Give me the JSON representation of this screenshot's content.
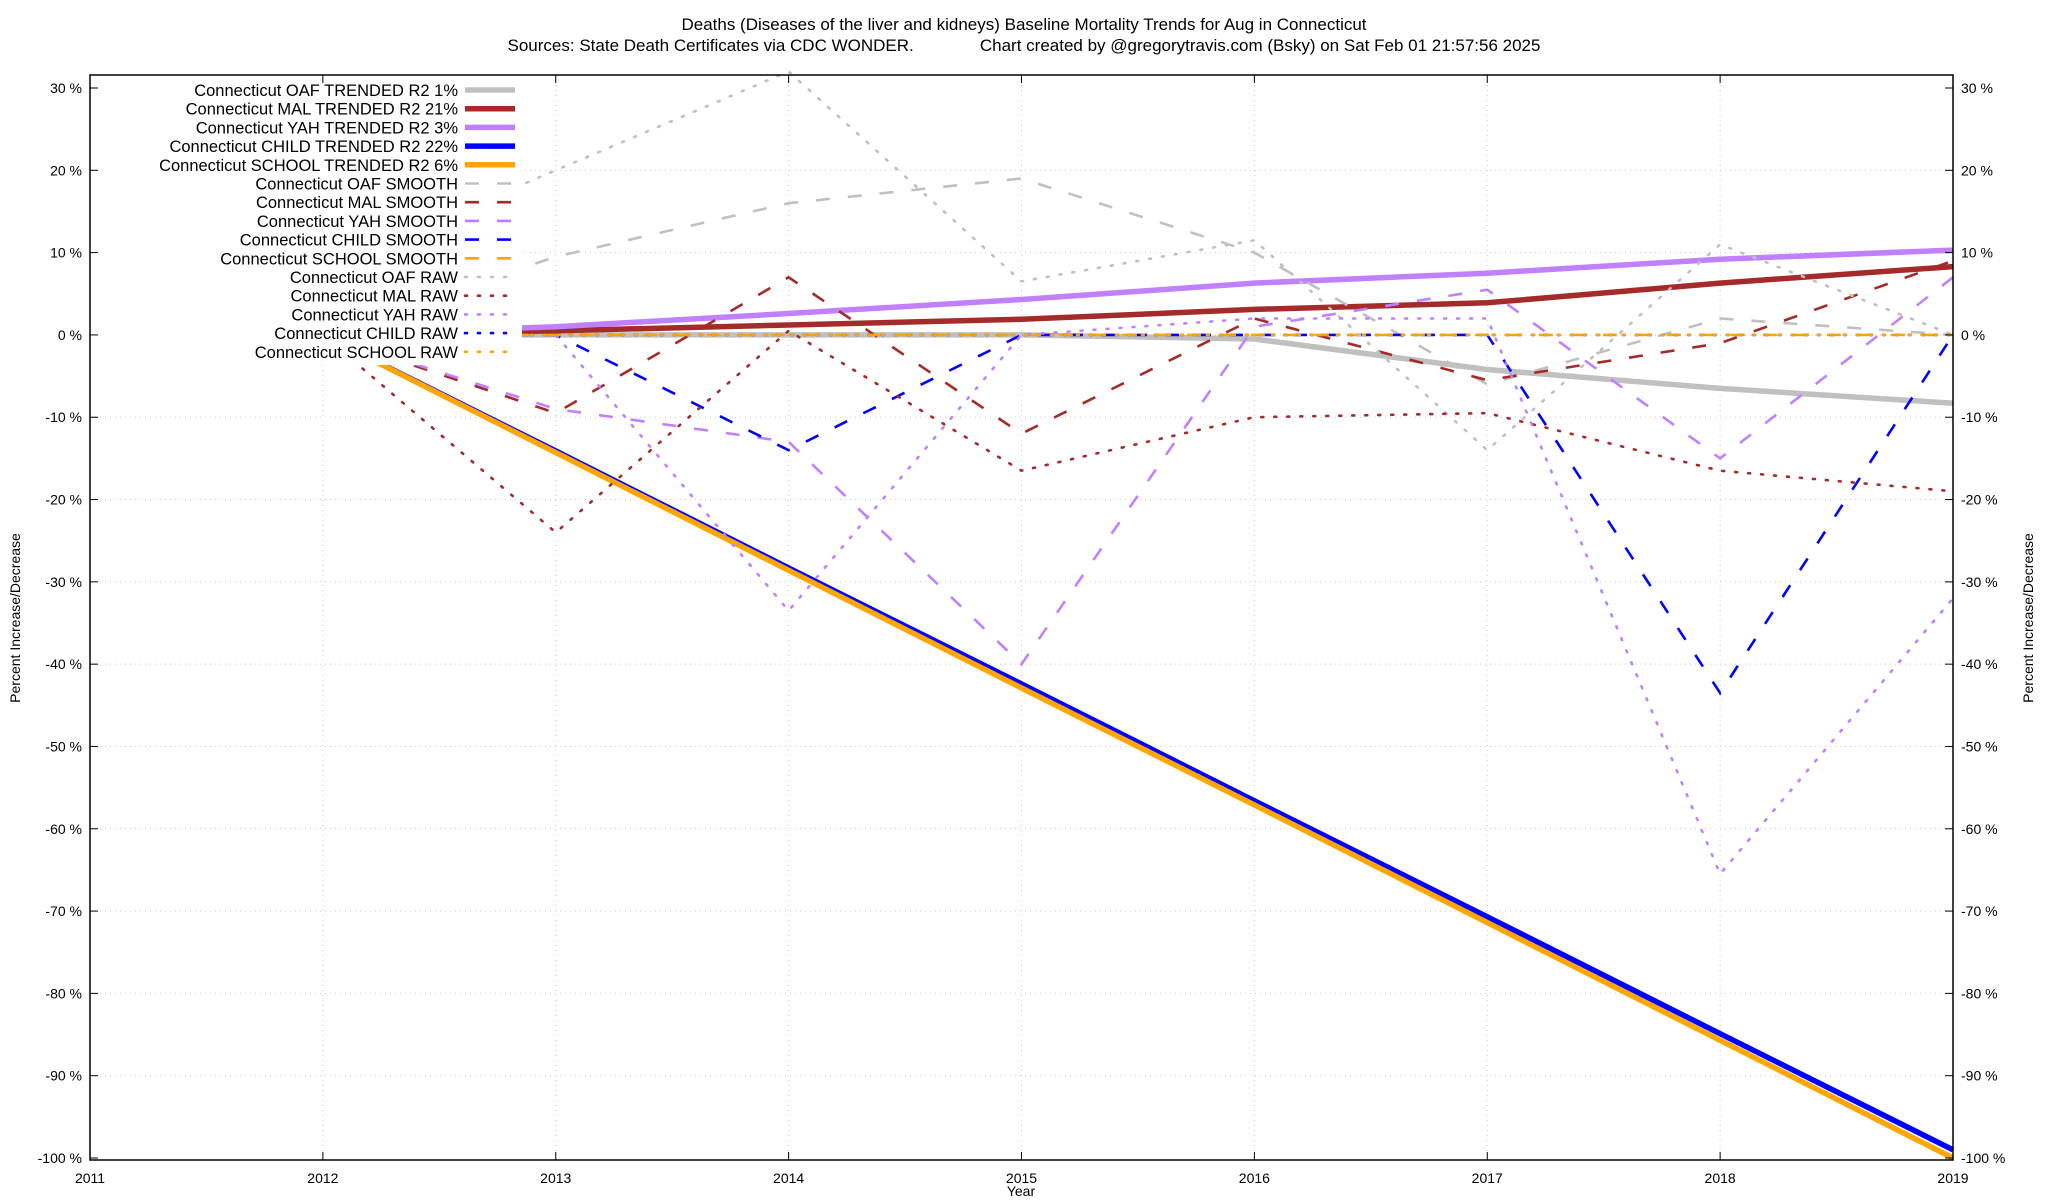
{
  "chart_data": {
    "type": "line",
    "title": "Deaths (Diseases of the liver and kidneys)  Baseline Mortality Trends for Aug in Connecticut",
    "subtitle": "Sources: State Death Certificates via CDC WONDER.              Chart created by @gregorytravis.com (Bsky) on Sat Feb 01 21:57:56 2025",
    "xlabel": "Year",
    "ylabel": "Percent Increase/Decrease",
    "y2label": "Percent Increase/Decrease",
    "xlim": [
      2011,
      2019
    ],
    "ylim": [
      -100,
      30
    ],
    "xticks": [
      "2011",
      "2012",
      "2013",
      "2014",
      "2015",
      "2016",
      "2017",
      "2018",
      "2019"
    ],
    "yticks": [
      "30 %",
      "20 %",
      "10 %",
      "0 %",
      "-10 %",
      "-20 %",
      "-30 %",
      "-40 %",
      "-50 %",
      "-60 %",
      "-70 %",
      "-80 %",
      "-90 %",
      "-100 %"
    ],
    "grid": true,
    "legend_position": "top-left",
    "x": [
      2012,
      2013,
      2014,
      2015,
      2016,
      2017,
      2018,
      2019
    ],
    "series": [
      {
        "name": "Connecticut OAF TRENDED R2   1%",
        "color": "#c0c0c0",
        "style": "solid",
        "values": [
          0,
          0,
          0,
          0,
          -0.5,
          -4.2,
          -6.5,
          -8.3
        ]
      },
      {
        "name": "Connecticut MAL TRENDED R2  21%",
        "color": "#a52a2a",
        "style": "solid",
        "values": [
          0,
          0.5,
          1.2,
          1.9,
          3.1,
          3.9,
          6.3,
          8.3
        ]
      },
      {
        "name": "Connecticut YAH TRENDED R2   3%",
        "color": "#c080ff",
        "style": "solid",
        "values": [
          0,
          1.0,
          2.6,
          4.3,
          6.3,
          7.5,
          9.2,
          10.3
        ]
      },
      {
        "name": "Connecticut CHILD TRENDED R2  22%",
        "color": "#0000ff",
        "style": "solid",
        "values": [
          0,
          -14.1,
          -28.3,
          -42.4,
          -56.6,
          -70.7,
          -84.9,
          -99
        ]
      },
      {
        "name": "Connecticut SCHOOL TRENDED R2   6%",
        "color": "#ffa500",
        "style": "solid",
        "values": [
          0,
          -14.3,
          -28.6,
          -42.9,
          -57.1,
          -71.4,
          -85.7,
          -100
        ]
      },
      {
        "name": "Connecticut OAF SMOOTH",
        "color": "#c0c0c0",
        "style": "dash",
        "values": [
          0,
          9.5,
          16,
          19,
          10,
          -6,
          2,
          0
        ]
      },
      {
        "name": "Connecticut MAL SMOOTH",
        "color": "#a52a2a",
        "style": "dash",
        "values": [
          0,
          -9.5,
          7,
          -12,
          2,
          -5.5,
          -1,
          9
        ]
      },
      {
        "name": "Connecticut YAH SMOOTH",
        "color": "#c080ff",
        "style": "dash",
        "values": [
          0,
          -9,
          -13,
          -40,
          1,
          5.5,
          -15,
          7
        ]
      },
      {
        "name": "Connecticut CHILD SMOOTH",
        "color": "#0000ff",
        "style": "dash",
        "values": [
          0,
          0,
          -14,
          0,
          0,
          0,
          -43.5,
          0
        ]
      },
      {
        "name": "Connecticut SCHOOL SMOOTH",
        "color": "#ffa500",
        "style": "dash",
        "values": [
          0,
          0,
          0,
          0,
          0,
          0,
          0,
          0
        ]
      },
      {
        "name": "Connecticut OAF RAW",
        "color": "#c0c0c0",
        "style": "dot",
        "values": [
          8,
          20,
          32,
          6.5,
          11.5,
          -14,
          11,
          0
        ]
      },
      {
        "name": "Connecticut MAL RAW",
        "color": "#a52a2a",
        "style": "dot",
        "values": [
          0,
          -24,
          0.5,
          -16.5,
          -10,
          -9.5,
          -16.5,
          -19
        ]
      },
      {
        "name": "Connecticut YAH RAW",
        "color": "#c080ff",
        "style": "dot",
        "values": [
          0,
          0,
          -33.5,
          0,
          2,
          2,
          -65.5,
          -32
        ]
      },
      {
        "name": "Connecticut CHILD RAW",
        "color": "#0000ff",
        "style": "dot",
        "values": [
          0,
          0,
          0,
          0,
          0,
          0,
          0,
          0
        ]
      },
      {
        "name": "Connecticut SCHOOL RAW",
        "color": "#ffa500",
        "style": "dot",
        "values": [
          0,
          0,
          0,
          0,
          0,
          0,
          0,
          0
        ]
      }
    ]
  }
}
